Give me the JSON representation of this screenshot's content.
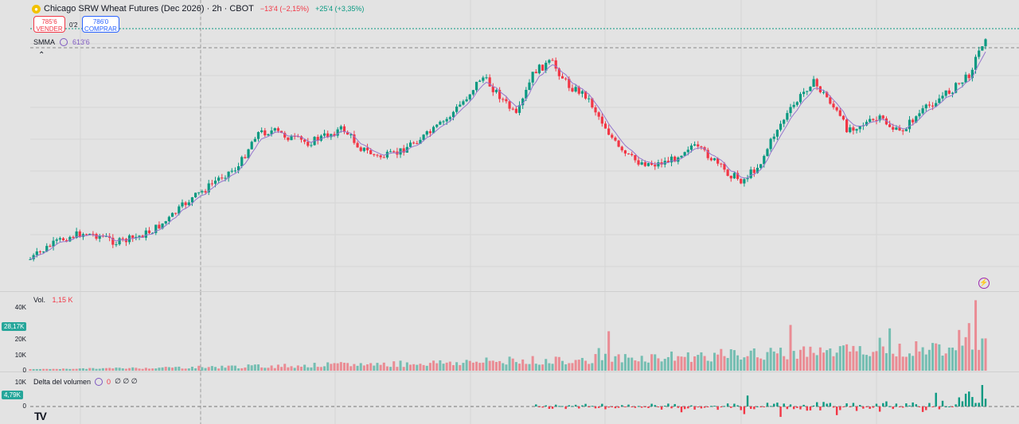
{
  "header": {
    "symbol_icon": "wheat-symbol-icon",
    "title": "Chicago SRW Wheat Futures (Dec 2026) · 2h · CBOT",
    "change_neg": "−13'4 (−2,15%)",
    "change_pos": "+25'4 (+3,35%)"
  },
  "trade": {
    "sell_price": "785'6",
    "sell_label": "VENDER",
    "spread": "0'2",
    "buy_price": "786'0",
    "buy_label": "COMPRAR"
  },
  "indicator": {
    "name": "SMMA",
    "value": "613'6"
  },
  "volume_pane": {
    "name": "Vol.",
    "value": "1,15 K",
    "ticks": [
      "40K",
      "20K",
      "10K",
      "0"
    ],
    "current_tag": "28,17K"
  },
  "delta_pane": {
    "name": "Delta del volumen",
    "value": "0",
    "extra": "∅ ∅ ∅",
    "ticks": [
      "10K",
      "0"
    ],
    "current_tag": "4,79K"
  },
  "logo_text": "TV",
  "colors": {
    "up": "#089981",
    "down": "#f23645",
    "smma": "#9575cd"
  },
  "chart_data": {
    "type": "candlestick",
    "price_path_relative": [
      0.03,
      0.08,
      0.12,
      0.14,
      0.13,
      0.1,
      0.12,
      0.15,
      0.2,
      0.27,
      0.32,
      0.38,
      0.42,
      0.56,
      0.57,
      0.54,
      0.52,
      0.55,
      0.58,
      0.5,
      0.46,
      0.47,
      0.52,
      0.56,
      0.62,
      0.7,
      0.8,
      0.72,
      0.63,
      0.82,
      0.86,
      0.76,
      0.72,
      0.6,
      0.48,
      0.44,
      0.43,
      0.45,
      0.51,
      0.47,
      0.4,
      0.36,
      0.43,
      0.58,
      0.68,
      0.78,
      0.7,
      0.58,
      0.6,
      0.62,
      0.56,
      0.63,
      0.69,
      0.74,
      0.8,
      0.97
    ],
    "volume_relative": "increasing toward right with spikes up to 45K"
  }
}
